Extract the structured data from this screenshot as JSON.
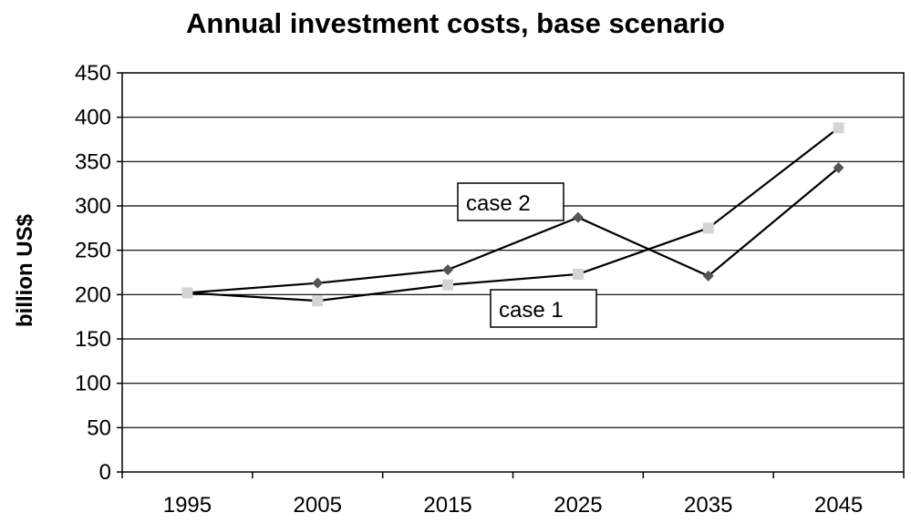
{
  "chart_data": {
    "type": "line",
    "title": "Annual investment costs, base scenario",
    "xlabel": "",
    "ylabel": "billion US$",
    "categories": [
      "1995",
      "2005",
      "2015",
      "2025",
      "2035",
      "2045"
    ],
    "ylim": [
      0,
      450
    ],
    "yticks": [
      0,
      50,
      100,
      150,
      200,
      250,
      300,
      350,
      400,
      450
    ],
    "grid": true,
    "series": [
      {
        "name": "case 2",
        "values": [
          202,
          213,
          228,
          287,
          221,
          343
        ],
        "marker": "diamond",
        "color": "#555555"
      },
      {
        "name": "case 1",
        "values": [
          202,
          193,
          211,
          223,
          275,
          388
        ],
        "marker": "square",
        "color": "#d4d4d4"
      }
    ],
    "annotations": [
      {
        "text": "case 2",
        "series": "case 2"
      },
      {
        "text": "case 1",
        "series": "case 1"
      }
    ]
  }
}
